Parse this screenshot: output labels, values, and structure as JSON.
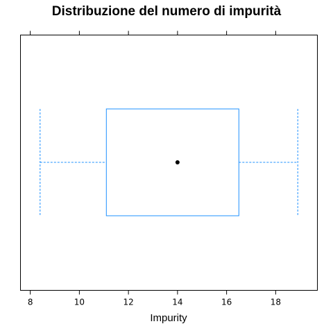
{
  "chart_data": {
    "type": "boxplot",
    "title": "Distribuzione del numero di impurità",
    "xlabel": "Impurity",
    "ylabel": "",
    "xlim": [
      7.6,
      19.7
    ],
    "x_ticks": [
      8,
      10,
      12,
      14,
      16,
      18
    ],
    "x_tick_labels": [
      "8",
      "10",
      "12",
      "14",
      "16",
      "18"
    ],
    "box": {
      "whisker_low": 8.4,
      "q1": 11.1,
      "median": 14.0,
      "q3": 16.5,
      "whisker_high": 18.9
    },
    "colors": {
      "box": "#1e90ff",
      "median_dot": "#000000",
      "frame": "#000000"
    },
    "grid": false,
    "legend": "none"
  }
}
